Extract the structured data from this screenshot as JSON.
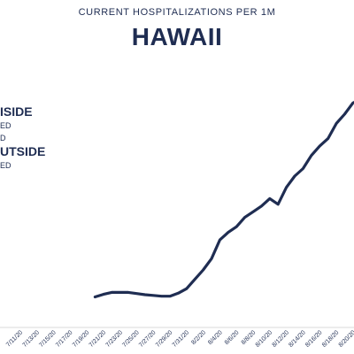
{
  "header": {
    "subtitle": "CURRENT HOSPITALIZATIONS PER 1M",
    "title": "HAWAII"
  },
  "legend": {
    "lines": [
      "ISIDE",
      "ED",
      "D",
      "UTSIDE",
      "ED"
    ]
  },
  "colors": {
    "line": "#1f2d52",
    "text": "#1f2d52"
  },
  "chart_data": {
    "type": "line",
    "title": "HAWAII",
    "subtitle": "CURRENT HOSPITALIZATIONS PER 1M",
    "xlabel": "",
    "ylabel": "",
    "x_ticks": [
      "7/11/20",
      "7/13/20",
      "7/15/20",
      "7/17/20",
      "7/19/20",
      "7/21/20",
      "7/23/20",
      "7/25/20",
      "7/27/20",
      "7/29/20",
      "7/31/20",
      "8/2/20",
      "8/4/20",
      "8/6/20",
      "8/8/20",
      "8/10/20",
      "8/12/20",
      "8/14/20",
      "8/16/20",
      "8/18/20",
      "8/20/20",
      "8/22/20"
    ],
    "x": [
      "7/20/20",
      "7/21/20",
      "7/22/20",
      "7/23/20",
      "7/24/20",
      "7/25/20",
      "7/26/20",
      "7/27/20",
      "7/28/20",
      "7/29/20",
      "7/30/20",
      "7/31/20",
      "8/1/20",
      "8/2/20",
      "8/3/20",
      "8/4/20",
      "8/5/20",
      "8/6/20",
      "8/7/20",
      "8/8/20",
      "8/9/20",
      "8/10/20",
      "8/11/20",
      "8/12/20",
      "8/13/20",
      "8/14/20",
      "8/15/20",
      "8/16/20",
      "8/17/20",
      "8/18/20",
      "8/19/20",
      "8/20/20",
      "8/21/20",
      "8/22/20",
      "8/23/20"
    ],
    "series": [
      {
        "values": [
          5.3,
          6.0,
          6.5,
          6.5,
          6.5,
          6.2,
          5.9,
          5.7,
          5.5,
          5.5,
          6.3,
          7.5,
          10.0,
          12.5,
          15.5,
          20.5,
          22.5,
          24.0,
          26.5,
          28.0,
          29.5,
          31.5,
          30.0,
          34.5,
          37.5,
          39.5,
          43.0,
          45.5,
          47.5,
          51.5,
          54.0,
          57.0,
          58.0,
          60.5,
          63.0
        ]
      }
    ],
    "ylim": [
      0,
      75
    ],
    "grid": false,
    "legend_position": "left"
  }
}
